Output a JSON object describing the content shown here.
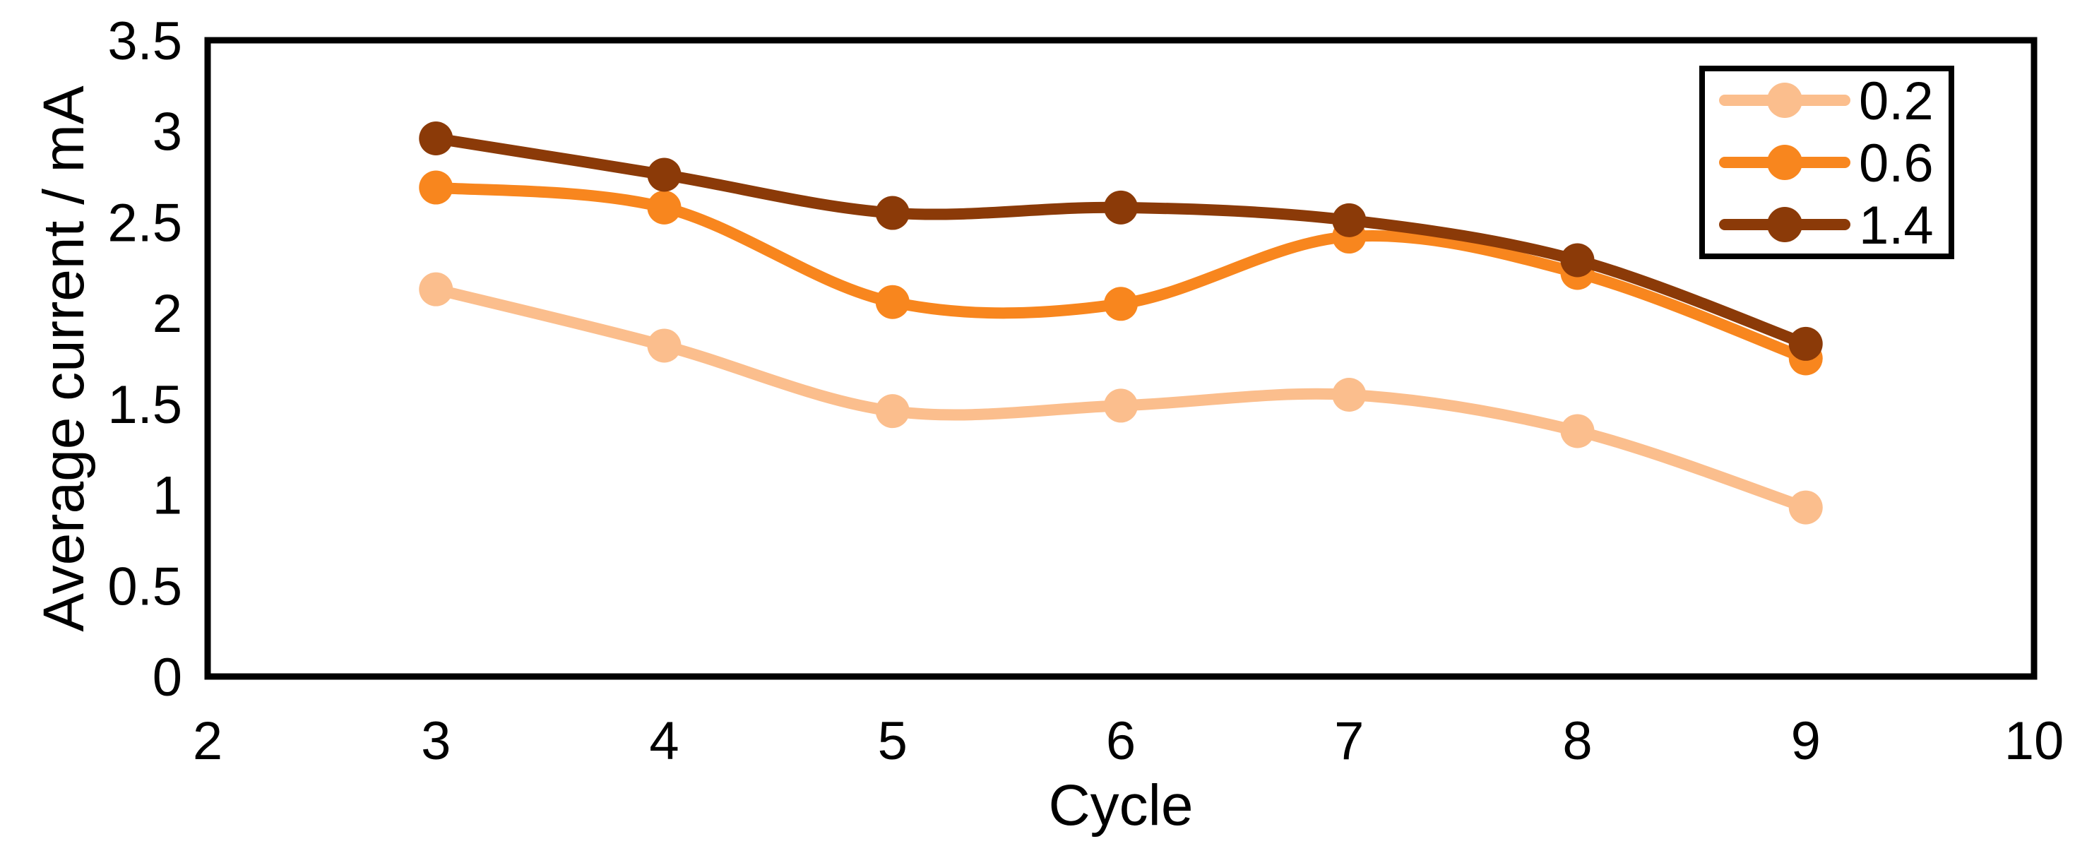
{
  "chart_data": {
    "type": "line",
    "title": "",
    "xlabel": "Cycle",
    "ylabel": "Average current / mA",
    "x": [
      3,
      4,
      5,
      6,
      7,
      8,
      9
    ],
    "xlim": [
      2,
      10
    ],
    "ylim": [
      0,
      3.5
    ],
    "xticks": [
      2,
      3,
      4,
      5,
      6,
      7,
      8,
      9,
      10
    ],
    "xtick_labels": [
      "2",
      "3",
      "4",
      "5",
      "6",
      "7",
      "8",
      "9",
      "10"
    ],
    "yticks": [
      0,
      0.5,
      1,
      1.5,
      2,
      2.5,
      3,
      3.5
    ],
    "ytick_labels": [
      "0",
      "0.5",
      "1",
      "1.5",
      "2",
      "2.5",
      "3",
      "3.5"
    ],
    "grid": false,
    "smooth_lines": true,
    "legend_position": "top-right",
    "legend_entries": [
      "0.2",
      "0.6",
      "1.4"
    ],
    "series": [
      {
        "name": "0.2",
        "color": "#FBBE8D",
        "values": [
          2.13,
          1.82,
          1.46,
          1.49,
          1.55,
          1.35,
          0.93
        ]
      },
      {
        "name": "0.6",
        "color": "#F8861E",
        "values": [
          2.69,
          2.58,
          2.06,
          2.05,
          2.42,
          2.22,
          1.75
        ]
      },
      {
        "name": "1.4",
        "color": "#8B3A08",
        "values": [
          2.96,
          2.76,
          2.55,
          2.58,
          2.51,
          2.29,
          1.83
        ]
      }
    ],
    "axis_color": "#000000",
    "background_color": "#FFFFFF"
  }
}
